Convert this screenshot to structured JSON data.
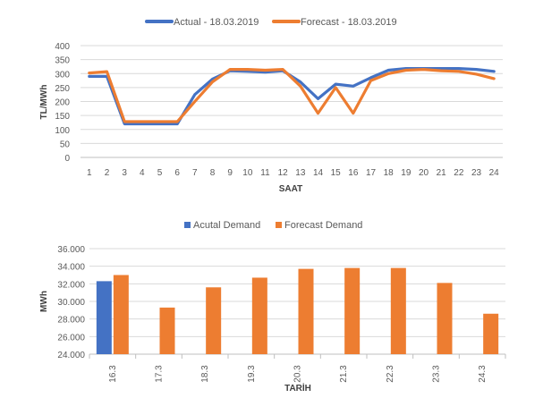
{
  "chart_data": [
    {
      "type": "line",
      "title": "",
      "xlabel": "SAAT",
      "ylabel": "TL/MWh",
      "ylim": [
        0,
        400
      ],
      "yticks": [
        0,
        50,
        100,
        150,
        200,
        250,
        300,
        350,
        400
      ],
      "grid": true,
      "legend": "top",
      "categories": [
        "1",
        "2",
        "3",
        "4",
        "5",
        "6",
        "7",
        "8",
        "9",
        "10",
        "11",
        "12",
        "13",
        "14",
        "15",
        "16",
        "17",
        "18",
        "19",
        "20",
        "21",
        "22",
        "23",
        "24"
      ],
      "series": [
        {
          "name": "Actual - 18.03.2019",
          "color": "#4472C4",
          "values": [
            290,
            290,
            120,
            120,
            120,
            120,
            225,
            280,
            310,
            308,
            305,
            310,
            270,
            210,
            262,
            255,
            285,
            312,
            318,
            318,
            318,
            318,
            315,
            308
          ]
        },
        {
          "name": "Forecast - 18.03.2019",
          "color": "#ED7D31",
          "values": [
            302,
            307,
            128,
            128,
            128,
            128,
            200,
            270,
            315,
            315,
            312,
            315,
            255,
            158,
            250,
            158,
            275,
            300,
            312,
            315,
            310,
            308,
            298,
            282
          ]
        }
      ]
    },
    {
      "type": "bar",
      "title": "",
      "xlabel": "TARİH",
      "ylabel": "MWh",
      "ylim": [
        24000,
        36000
      ],
      "yticks": [
        "24.000",
        "26.000",
        "28.000",
        "30.000",
        "32.000",
        "34.000",
        "36.000"
      ],
      "grid": true,
      "legend": "top",
      "categories": [
        "16.3",
        "17.3",
        "18.3",
        "19.3",
        "20.3",
        "21.3",
        "22.3",
        "23.3",
        "24.3"
      ],
      "series": [
        {
          "name": "Acutal Demand",
          "color": "#4472C4",
          "values": [
            32300,
            null,
            null,
            null,
            null,
            null,
            null,
            null,
            null
          ]
        },
        {
          "name": "Forecast Demand",
          "color": "#ED7D31",
          "values": [
            33000,
            29300,
            31600,
            32700,
            33700,
            33800,
            33800,
            32100,
            28600
          ]
        }
      ]
    }
  ]
}
